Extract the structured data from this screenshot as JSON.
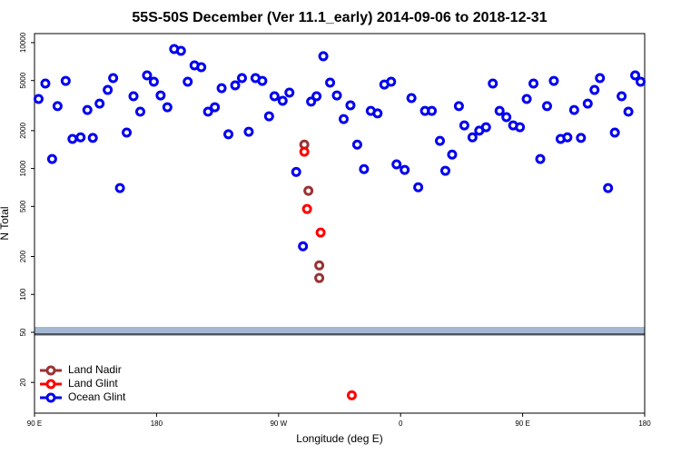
{
  "chart_data": {
    "type": "scatter",
    "title": "55S-50S December (Ver 11.1_early)   2014-09-06 to 2018-12-31",
    "x_label": "Longitude (deg E)",
    "y_label": "N Total",
    "yscale": "log",
    "grid": false,
    "legend_position": "bottom-left",
    "xlim": [
      90,
      540
    ],
    "ylim": [
      11.4,
      11800
    ],
    "xticks": [
      {
        "value": 90,
        "label": "90 E"
      },
      180,
      {
        "value": 270,
        "label": "90 W"
      },
      {
        "value": 360,
        "label": "0"
      },
      {
        "value": 450,
        "label": "90 E"
      },
      {
        "value": 540,
        "label": "180"
      }
    ],
    "yticks": [
      20,
      50,
      100,
      200,
      500,
      1000,
      2000,
      5000,
      10000
    ],
    "series": [
      {
        "name": "Land Nadir",
        "color": "#993333",
        "x": [
          289,
          292,
          300,
          300
        ],
        "values": [
          1550,
          665,
          170,
          135
        ]
      },
      {
        "name": "Land Glint",
        "color": "#ff0000",
        "x": [
          289,
          291,
          301,
          324
        ],
        "values": [
          1360,
          477,
          310,
          15.8
        ]
      },
      {
        "name": "Ocean Glint",
        "color": "#0000ee",
        "x": [
          93,
          98,
          103,
          107,
          113,
          118,
          124,
          129,
          133,
          138,
          144,
          148,
          153,
          158,
          163,
          168,
          173,
          178,
          183,
          188,
          193,
          198,
          203,
          208,
          213,
          218,
          223,
          228,
          233,
          238,
          243,
          248,
          253,
          258,
          263,
          267,
          273,
          278,
          283,
          288,
          294,
          298,
          303,
          308,
          313,
          318,
          323,
          328,
          333,
          338,
          343,
          348,
          353,
          357,
          363,
          368,
          373,
          378,
          383,
          389,
          393,
          398,
          403,
          407,
          413,
          418,
          423,
          428,
          433,
          438,
          443,
          448,
          453,
          458,
          463,
          468,
          473,
          478,
          483,
          488,
          493,
          498,
          503,
          507,
          513,
          518,
          523,
          528,
          533,
          537
        ],
        "values": [
          3570,
          4730,
          1190,
          3130,
          4970,
          1720,
          1770,
          2920,
          1750,
          3280,
          4210,
          5230,
          700,
          1930,
          3750,
          2830,
          5500,
          4890,
          3810,
          3070,
          8900,
          8610,
          4890,
          6600,
          6380,
          2830,
          3070,
          4350,
          1870,
          4580,
          5230,
          1960,
          5230,
          4970,
          2600,
          3750,
          3450,
          4010,
          940,
          241,
          3400,
          3750,
          7800,
          4810,
          3810,
          2470,
          3180,
          1550,
          990,
          2870,
          2740,
          4650,
          4890,
          1080,
          975,
          3630,
          710,
          2870,
          2870,
          1660,
          960,
          1290,
          3130,
          2200,
          1770,
          2000,
          2130,
          4730,
          2870,
          2560,
          2200,
          2130,
          3570,
          4730,
          1190,
          3130,
          4970,
          1720,
          1770,
          2920,
          1750,
          3280,
          4210,
          5230,
          700,
          1930,
          3750,
          2830,
          5500,
          4890
        ]
      }
    ]
  }
}
